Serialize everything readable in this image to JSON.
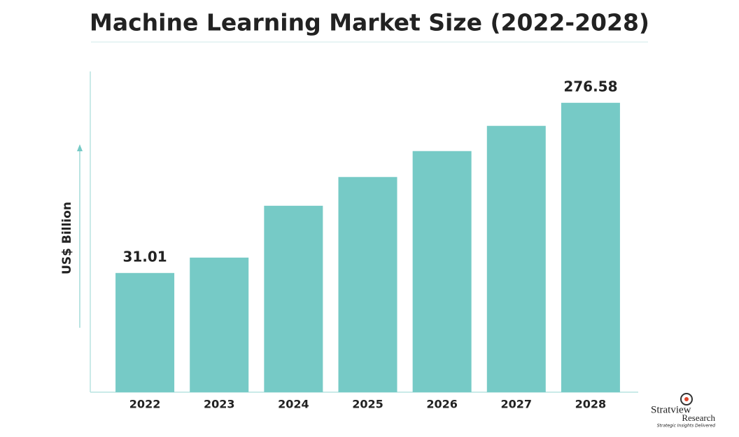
{
  "chart_data": {
    "type": "bar",
    "title": "Machine Learning Market Size (2022-2028)",
    "y_label": "US$ Billion",
    "categories": [
      "2022",
      "2023",
      "2024",
      "2025",
      "2026",
      "2027",
      "2028"
    ],
    "values": [
      31.01,
      53.2,
      128.0,
      169.5,
      206.9,
      243.3,
      276.58
    ],
    "value_labels": [
      "31.01",
      null,
      null,
      null,
      null,
      null,
      "276.58"
    ],
    "color": "#76cac6",
    "ylim": [
      -141,
      300
    ]
  },
  "logo": {
    "name_top": "Stratview",
    "name_bottom": "Research",
    "tagline": "Strategic Insights Delivered"
  }
}
